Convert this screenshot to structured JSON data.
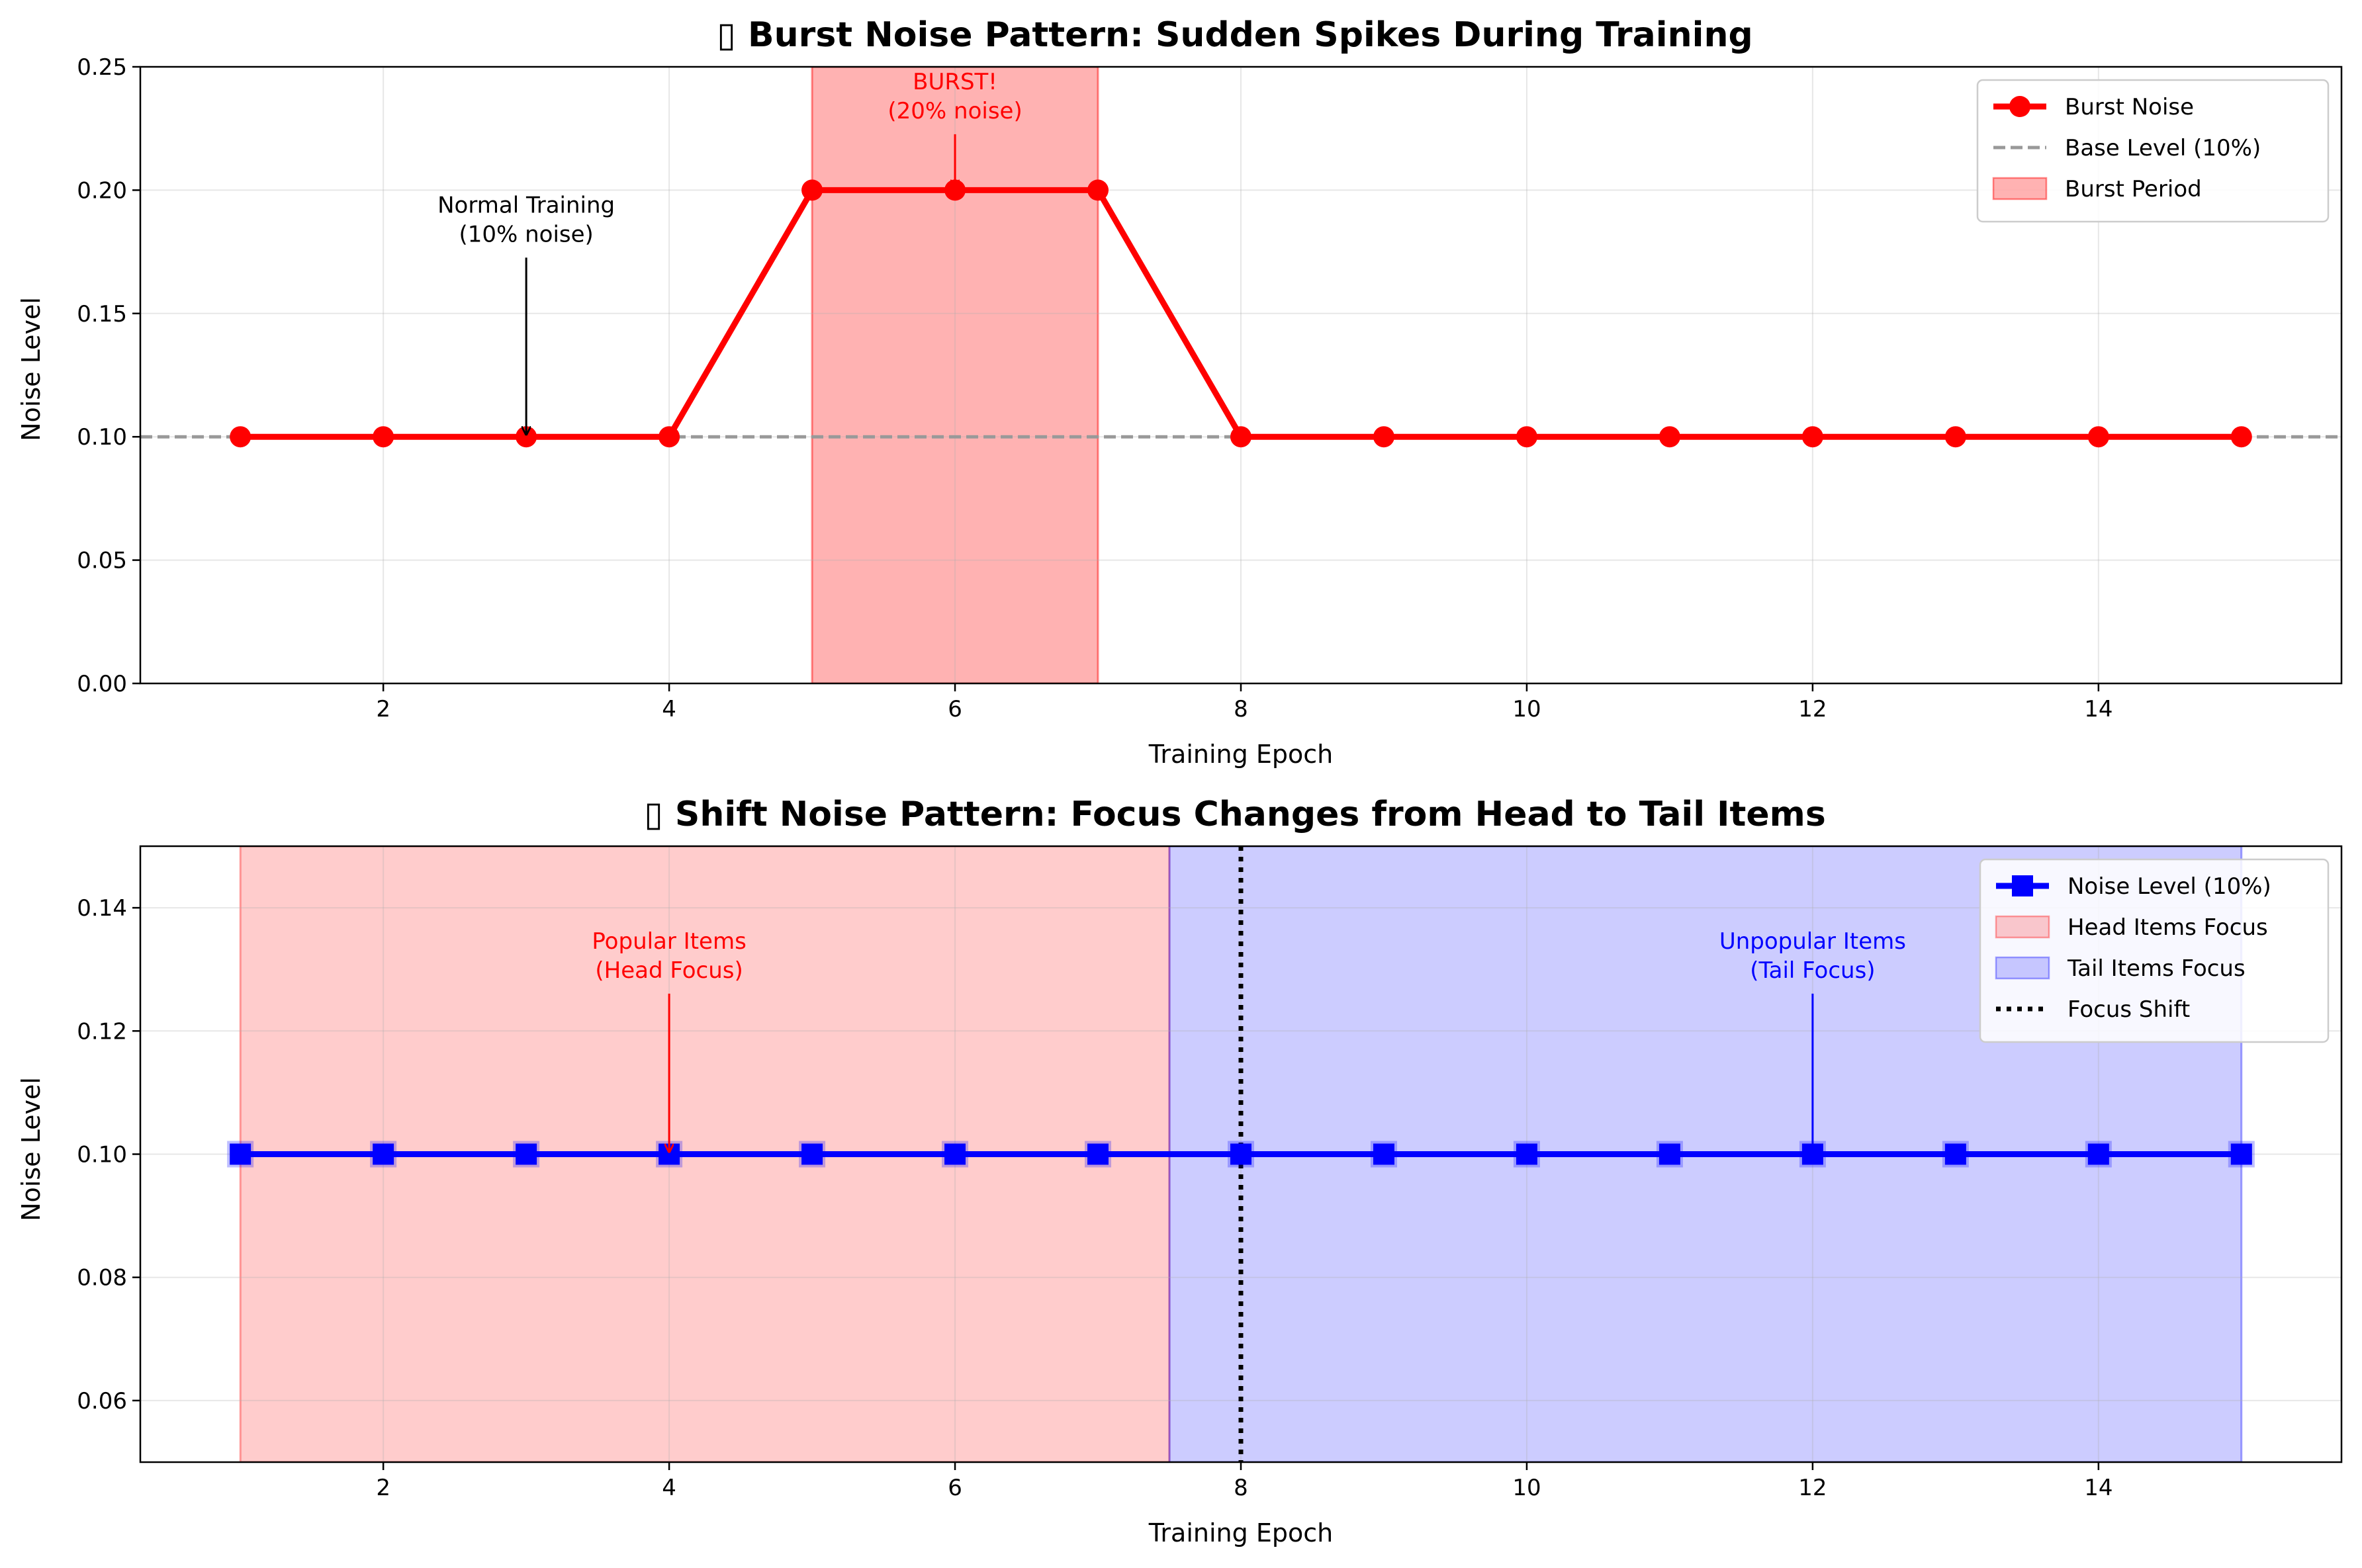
{
  "chart_data": [
    {
      "type": "line",
      "title": "▯ Burst Noise Pattern: Sudden Spikes During Training",
      "xlabel": "Training Epoch",
      "ylabel": "Noise Level",
      "xlim": [
        0.3,
        15.7
      ],
      "ylim": [
        0.0,
        0.25
      ],
      "x_ticks": [
        2,
        4,
        6,
        8,
        10,
        12,
        14
      ],
      "x_tick_labels": [
        "2",
        "4",
        "6",
        "8",
        "10",
        "12",
        "14"
      ],
      "y_ticks": [
        0.0,
        0.05,
        0.1,
        0.15,
        0.2,
        0.25
      ],
      "y_tick_labels": [
        "0.00",
        "0.05",
        "0.10",
        "0.15",
        "0.20",
        "0.25"
      ],
      "grid": true,
      "legend_position": "upper right",
      "x": [
        1,
        2,
        3,
        4,
        5,
        6,
        7,
        8,
        9,
        10,
        11,
        12,
        13,
        14,
        15
      ],
      "series": [
        {
          "name": "Burst Noise",
          "values": [
            0.1,
            0.1,
            0.1,
            0.1,
            0.2,
            0.2,
            0.2,
            0.1,
            0.1,
            0.1,
            0.1,
            0.1,
            0.1,
            0.1,
            0.1
          ],
          "color": "#ff0000",
          "marker": "circle"
        }
      ],
      "hlines": [
        {
          "name": "Base Level (10%)",
          "y": 0.1,
          "color": "#999999",
          "style": "dashed"
        }
      ],
      "spans": [
        {
          "name": "Burst Period",
          "x0": 5,
          "x1": 7,
          "color": "#ff0000",
          "alpha": 0.3
        }
      ],
      "annotations": [
        {
          "lines": [
            "BURST!",
            "(20% noise)"
          ],
          "text_x": 6,
          "text_y": 0.235,
          "arrow_to_x": 6,
          "arrow_to_y": 0.2,
          "color": "#ff0000"
        },
        {
          "lines": [
            "Normal Training",
            "(10% noise)"
          ],
          "text_x": 3,
          "text_y": 0.185,
          "arrow_to_x": 3,
          "arrow_to_y": 0.1,
          "color": "#000000"
        }
      ],
      "legend": [
        {
          "label": "Burst Noise",
          "kind": "line-marker",
          "color": "#ff0000",
          "marker": "circle"
        },
        {
          "label": "Base Level (10%)",
          "kind": "dashed",
          "color": "#999999"
        },
        {
          "label": "Burst Period",
          "kind": "patch",
          "color": "#ff0000",
          "alpha": 0.3
        }
      ]
    },
    {
      "type": "line",
      "title": "▯ Shift Noise Pattern: Focus Changes from Head to Tail Items",
      "xlabel": "Training Epoch",
      "ylabel": "Noise Level",
      "xlim": [
        0.3,
        15.7
      ],
      "ylim": [
        0.05,
        0.15
      ],
      "x_ticks": [
        2,
        4,
        6,
        8,
        10,
        12,
        14
      ],
      "x_tick_labels": [
        "2",
        "4",
        "6",
        "8",
        "10",
        "12",
        "14"
      ],
      "y_ticks": [
        0.06,
        0.08,
        0.1,
        0.12,
        0.14
      ],
      "y_tick_labels": [
        "0.06",
        "0.08",
        "0.10",
        "0.12",
        "0.14"
      ],
      "grid": true,
      "legend_position": "upper right",
      "x": [
        1,
        2,
        3,
        4,
        5,
        6,
        7,
        8,
        9,
        10,
        11,
        12,
        13,
        14,
        15
      ],
      "series": [
        {
          "name": "Noise Level (10%)",
          "values": [
            0.1,
            0.1,
            0.1,
            0.1,
            0.1,
            0.1,
            0.1,
            0.1,
            0.1,
            0.1,
            0.1,
            0.1,
            0.1,
            0.1,
            0.1
          ],
          "color": "#0000ff",
          "marker": "square"
        }
      ],
      "spans": [
        {
          "name": "Head Items Focus",
          "x0": 1,
          "x1": 7.5,
          "color": "#ff0000",
          "alpha": 0.2
        },
        {
          "name": "Tail Items Focus",
          "x0": 7.5,
          "x1": 15,
          "color": "#0000ff",
          "alpha": 0.2
        }
      ],
      "vlines": [
        {
          "name": "Focus Shift",
          "x": 8,
          "color": "#000000",
          "style": "dotted"
        }
      ],
      "annotations": [
        {
          "lines": [
            "Popular Items",
            "(Head Focus)"
          ],
          "text_x": 4,
          "text_y": 0.131,
          "arrow_to_x": 4,
          "arrow_to_y": 0.1,
          "color": "#ff0000"
        },
        {
          "lines": [
            "Unpopular Items",
            "(Tail Focus)"
          ],
          "text_x": 12,
          "text_y": 0.131,
          "arrow_to_x": 12,
          "arrow_to_y": 0.1,
          "color": "#0000ff"
        }
      ],
      "legend": [
        {
          "label": "Noise Level (10%)",
          "kind": "line-marker",
          "color": "#0000ff",
          "marker": "square"
        },
        {
          "label": "Head Items Focus",
          "kind": "patch",
          "color": "#ff0000",
          "alpha": 0.2
        },
        {
          "label": "Tail Items Focus",
          "kind": "patch",
          "color": "#0000ff",
          "alpha": 0.2
        },
        {
          "label": "Focus Shift",
          "kind": "dotted",
          "color": "#000000"
        }
      ]
    }
  ]
}
